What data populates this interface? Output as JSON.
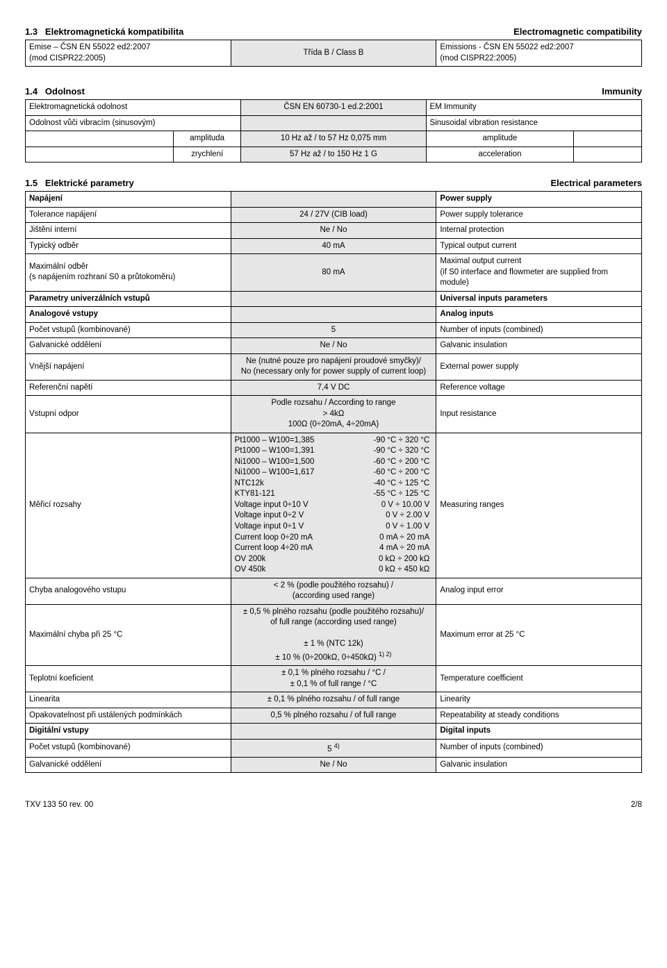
{
  "s13": {
    "num": "1.3",
    "title_cz": "Elektromagnetická kompatibilita",
    "title_en": "Electromagnetic compatibility",
    "row": {
      "cz": "Emise – ČSN EN 55022 ed2:2007\n(mod CISPR22:2005)",
      "mid": "Třída B / Class B",
      "en": "Emissions - ČSN EN 55022 ed2:2007\n(mod CISPR22:2005)"
    }
  },
  "s14": {
    "num": "1.4",
    "title_cz": "Odolnost",
    "title_en": "Immunity",
    "r1": {
      "cz": "Elektromagnetická odolnost",
      "mid": "ČSN EN 60730-1 ed.2:2001",
      "en": "EM Immunity"
    },
    "r2": {
      "cz": "Odolnost vůči vibracím (sinusovým)",
      "en": "Sinusoidal vibration resistance"
    },
    "r3": {
      "cz": "amplituda",
      "mid": "10 Hz až / to 57 Hz   0,075 mm",
      "en": "amplitude"
    },
    "r4": {
      "cz": "zrychlení",
      "mid": "57 Hz až / to 150 Hz  1 G",
      "en": "acceleration"
    }
  },
  "s15": {
    "num": "1.5",
    "title_cz": "Elektrické parametry",
    "title_en": "Electrical parameters",
    "rows": [
      {
        "cz": "Napájení",
        "mid": "",
        "en": "Power  supply",
        "bold": true
      },
      {
        "cz": "Tolerance napájení",
        "mid": "24 / 27V (CIB load)",
        "en": "Power supply tolerance"
      },
      {
        "cz": "Jištění interní",
        "mid": "Ne / No",
        "en": "Internal protection"
      },
      {
        "cz": "Typický odběr",
        "mid": "40 mA",
        "en": "Typical output current"
      },
      {
        "cz": "Maximální odběr\n(s napájením rozhraní S0 a průtokoměru)",
        "mid": "80 mA",
        "en": "Maximal output current\n(if S0 interface and flowmeter are supplied from module)"
      },
      {
        "cz": "Parametry univerzálních vstupů",
        "mid": "",
        "en": "Universal inputs parameters",
        "bold": true
      },
      {
        "cz": "Analogové vstupy",
        "mid": "",
        "en": "Analog inputs",
        "bold": true
      },
      {
        "cz": "Počet vstupů (kombinované)",
        "mid": "5",
        "en": "Number of inputs (combined)"
      },
      {
        "cz": "Galvanické oddělení",
        "mid": "Ne / No",
        "en": "Galvanic insulation"
      },
      {
        "cz": "Vnější napájení",
        "mid": "Ne (nutné pouze pro napájení proudové smyčky)/\nNo (necessary only for power supply of current loop)",
        "en": "External power supply"
      },
      {
        "cz": "Referenční napětí",
        "mid": "7,4 V DC",
        "en": "Reference voltage"
      },
      {
        "cz": "Vstupní odpor",
        "mid": "Podle rozsahu / According to range\n> 4kΩ\n100Ω (0÷20mA, 4÷20mA)",
        "en": "Input resistance"
      },
      {
        "cz": "Měřicí rozsahy",
        "special": "ranges",
        "en": "Measuring ranges"
      },
      {
        "cz": "Chyba analogového vstupu",
        "mid": "< 2 % (podle použitého rozsahu) /\n(according used range)",
        "en": "Analog input error"
      },
      {
        "cz": "Maximální chyba při 25 °C",
        "special": "maxerr",
        "en": "Maximum error at 25 °C"
      },
      {
        "cz": "Teplotní koeficient",
        "mid": "± 0,1 % plného rozsahu / °C /\n± 0,1 % of full range / °C",
        "en": "Temperature coefficient"
      },
      {
        "cz": "Linearita",
        "mid": "± 0,1 % plného rozsahu /  of full range",
        "en": "Linearity"
      },
      {
        "cz": "Opakovatelnost při ustálených podmínkách",
        "mid": "0,5 % plného rozsahu / of full range",
        "en": "Repeatability at steady conditions"
      },
      {
        "cz": "Digitální vstupy",
        "mid": "",
        "en": "Digital inputs",
        "bold": true
      },
      {
        "cz": "Počet vstupů (kombinované)",
        "special": "di_count",
        "en": "Number of inputs (combined)"
      },
      {
        "cz": "Galvanické oddělení",
        "mid": "Ne / No",
        "en": "Galvanic insulation"
      }
    ],
    "ranges": [
      [
        "Pt1000 – W100=1,385",
        "-90 °C ÷ 320 °C"
      ],
      [
        "Pt1000 – W100=1,391",
        "-90 °C ÷ 320 °C"
      ],
      [
        "Ni1000 – W100=1,500",
        "-60 °C ÷ 200 °C"
      ],
      [
        "Ni1000 – W100=1,617",
        "-60 °C ÷ 200 °C"
      ],
      [
        "NTC12k",
        "-40 °C ÷ 125 °C"
      ],
      [
        "KTY81-121",
        "-55 °C ÷ 125 °C"
      ],
      [
        "Voltage input 0÷10 V",
        "0 V ÷ 10.00 V"
      ],
      [
        "Voltage input 0÷2 V",
        "0 V ÷ 2.00 V"
      ],
      [
        "Voltage input 0÷1 V",
        "0 V ÷ 1.00 V"
      ],
      [
        "Current loop 0÷20 mA",
        "0 mA ÷ 20 mA"
      ],
      [
        "Current loop 4÷20 mA",
        "4 mA ÷ 20 mA"
      ],
      [
        "OV 200k",
        "0 kΩ ÷ 200 kΩ"
      ],
      [
        "OV 450k",
        "0 kΩ ÷ 450 kΩ"
      ]
    ],
    "maxerr": {
      "l1": "± 0,5 % plného rozsahu (podle použitého rozsahu)/",
      "l2": "of full range (according used range)",
      "l3": "± 1 % (NTC 12k)",
      "l4": "± 10 % (0÷200kΩ, 0÷450kΩ)",
      "sup": "1) 2)"
    },
    "di_count": {
      "val": "5",
      "sup": "4)"
    }
  },
  "footer": {
    "left": "TXV 133 50 rev. 00",
    "right": "2/8"
  }
}
